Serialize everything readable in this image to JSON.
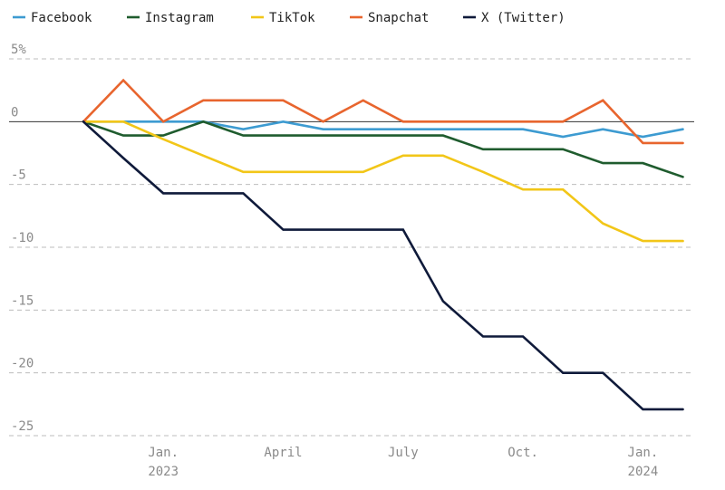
{
  "chart_data": {
    "type": "line",
    "title": "",
    "xlabel": "",
    "ylabel": "",
    "ylim": [
      -25,
      5
    ],
    "grid": true,
    "legend_position": "top-left",
    "y_ticks": [
      {
        "value": 5,
        "label": "5%"
      },
      {
        "value": 0,
        "label": "0"
      },
      {
        "value": -5,
        "label": "-5"
      },
      {
        "value": -10,
        "label": "-10"
      },
      {
        "value": -15,
        "label": "-15"
      },
      {
        "value": -20,
        "label": "-20"
      },
      {
        "value": -25,
        "label": "-25"
      }
    ],
    "x": [
      "2022-11",
      "2022-12",
      "2023-01",
      "2023-02",
      "2023-03",
      "2023-04",
      "2023-05",
      "2023-06",
      "2023-07",
      "2023-08",
      "2023-09",
      "2023-10",
      "2023-11",
      "2023-12",
      "2024-01",
      "2024-02"
    ],
    "x_ticks": [
      {
        "index": 2,
        "label": "Jan.",
        "sublabel": "2023"
      },
      {
        "index": 5,
        "label": "April",
        "sublabel": ""
      },
      {
        "index": 8,
        "label": "July",
        "sublabel": ""
      },
      {
        "index": 11,
        "label": "Oct.",
        "sublabel": ""
      },
      {
        "index": 14,
        "label": "Jan.",
        "sublabel": "2024"
      }
    ],
    "series": [
      {
        "name": "Facebook",
        "color": "#3d9bd1",
        "values": [
          0,
          0,
          0,
          0,
          -0.6,
          0,
          -0.6,
          -0.6,
          -0.6,
          -0.6,
          -0.6,
          -0.6,
          -1.2,
          -0.6,
          -1.2,
          -0.6
        ]
      },
      {
        "name": "Instagram",
        "color": "#1f5c2e",
        "values": [
          0,
          -1.1,
          -1.1,
          0,
          -1.1,
          -1.1,
          -1.1,
          -1.1,
          -1.1,
          -1.1,
          -2.2,
          -2.2,
          -2.2,
          -3.3,
          -3.3,
          -4.4
        ]
      },
      {
        "name": "TikTok",
        "color": "#f2c618",
        "values": [
          0,
          0,
          -1.4,
          -2.7,
          -4.0,
          -4.0,
          -4.0,
          -4.0,
          -2.7,
          -2.7,
          -4.0,
          -5.4,
          -5.4,
          -8.1,
          -9.5,
          -9.5
        ]
      },
      {
        "name": "Snapchat",
        "color": "#e8652e",
        "values": [
          0,
          3.3,
          0,
          1.7,
          1.7,
          1.7,
          0,
          1.7,
          0,
          0,
          0,
          0,
          0,
          1.7,
          -1.7,
          -1.7
        ]
      },
      {
        "name": "X (Twitter)",
        "color": "#0f1a3a",
        "values": [
          0,
          -2.9,
          -5.7,
          -5.7,
          -5.7,
          -8.6,
          -8.6,
          -8.6,
          -8.6,
          -14.3,
          -17.1,
          -17.1,
          -20.0,
          -20.0,
          -22.9,
          -22.9
        ]
      }
    ]
  }
}
